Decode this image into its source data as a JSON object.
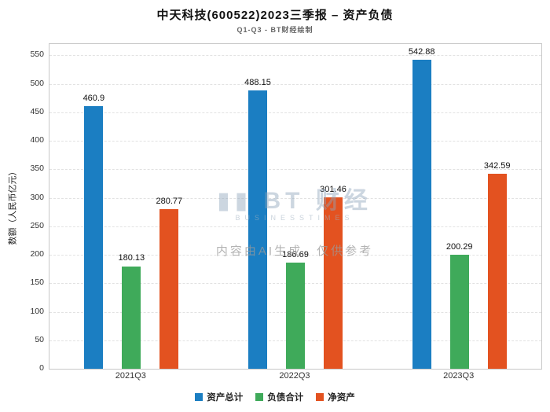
{
  "title": "中天科技(600522)2023三季报 – 资产负债",
  "subtitle": "Q1-Q3 - BT财经绘制",
  "watermark": {
    "logo_text": "▮▮ BT 财经",
    "logo_sub": "BUSINESSTIMES",
    "ai_note": "内容由AI生成，仅供参考"
  },
  "chart_data": {
    "type": "bar",
    "title": "中天科技(600522)2023三季报 – 资产负债",
    "subtitle": "Q1-Q3 - BT财经绘制",
    "categories": [
      "2021Q3",
      "2022Q3",
      "2023Q3"
    ],
    "series": [
      {
        "name": "资产总计",
        "color": "#1b7ec2",
        "values": [
          460.9,
          488.15,
          542.88
        ]
      },
      {
        "name": "负债合计",
        "color": "#3faa5a",
        "values": [
          180.13,
          186.69,
          200.29
        ]
      },
      {
        "name": "净资产",
        "color": "#e35220",
        "values": [
          280.77,
          301.46,
          342.59
        ]
      }
    ],
    "xlabel": "",
    "ylabel": "数额（人民币亿元）",
    "ylim": [
      0,
      570
    ],
    "yticks": [
      0,
      50,
      100,
      150,
      200,
      250,
      300,
      350,
      400,
      450,
      500,
      550
    ],
    "grid": true,
    "legend_position": "bottom"
  }
}
